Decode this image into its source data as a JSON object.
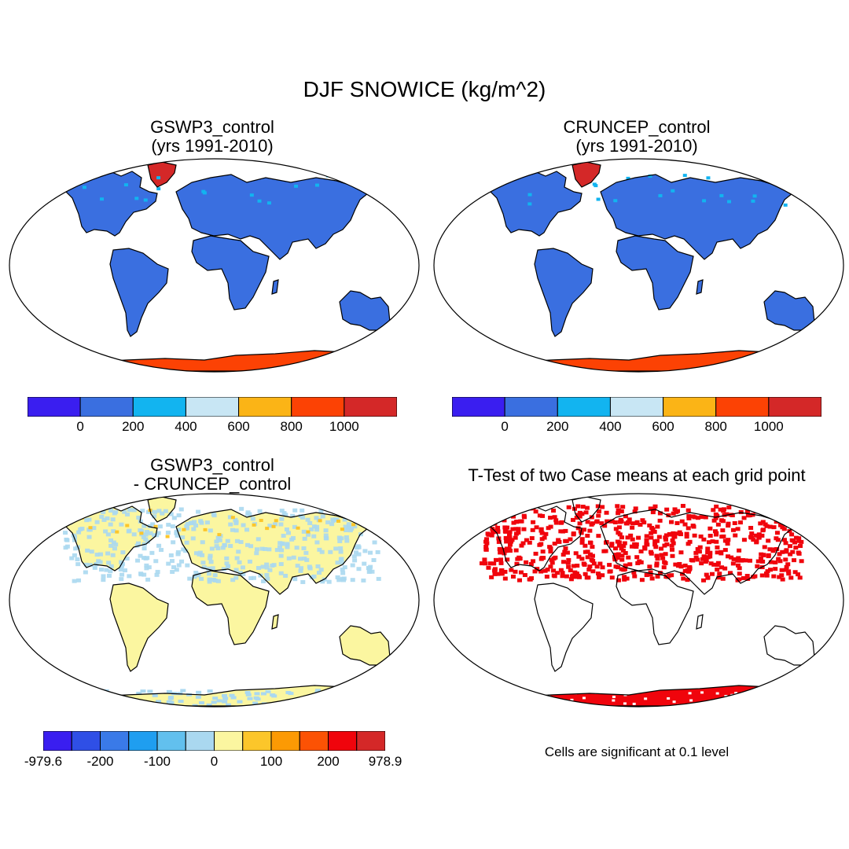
{
  "figure": {
    "title": "DJF SNOWICE (kg/m^2)"
  },
  "panels": {
    "top_left": {
      "title_line1": "GSWP3_control",
      "title_line2": "(yrs 1991-2010)"
    },
    "top_right": {
      "title_line1": "CRUNCEP_control",
      "title_line2": "(yrs 1991-2010)"
    },
    "bottom_left": {
      "title_line1": "GSWP3_control",
      "title_line2": "- CRUNCEP_control"
    },
    "bottom_right": {
      "title": "T-Test of two Case means at each grid point",
      "note": "Cells are significant at 0.1 level"
    }
  },
  "colorbars": {
    "absolute": {
      "colors": [
        "#3a1ef0",
        "#3a6fe0",
        "#12b4f0",
        "#c8e6f4",
        "#fbb416",
        "#fc4204",
        "#d42828"
      ],
      "labels": [
        "0",
        "200",
        "400",
        "600",
        "800",
        "1000"
      ]
    },
    "difference": {
      "colors": [
        "#3a1ef0",
        "#2f4fe6",
        "#3a7ae8",
        "#1f9ef0",
        "#62c0ee",
        "#aad8f0",
        "#fbf6a0",
        "#fcc62a",
        "#fc9a04",
        "#fc5204",
        "#f0040c",
        "#d42828"
      ],
      "labels": [
        "-979.6",
        "-200",
        "-100",
        "0",
        "100",
        "200",
        "978.9"
      ]
    }
  },
  "palette": {
    "land_snow": "#3a6fe0",
    "greenland_ice": "#d42828",
    "antarctica_ice": "#fc4204",
    "diff_land": "#fbf6a0",
    "diff_light_blue": "#aad8f0",
    "diff_orange": "#fcc62a",
    "significant": "#f0040c",
    "coast": "#000000"
  }
}
